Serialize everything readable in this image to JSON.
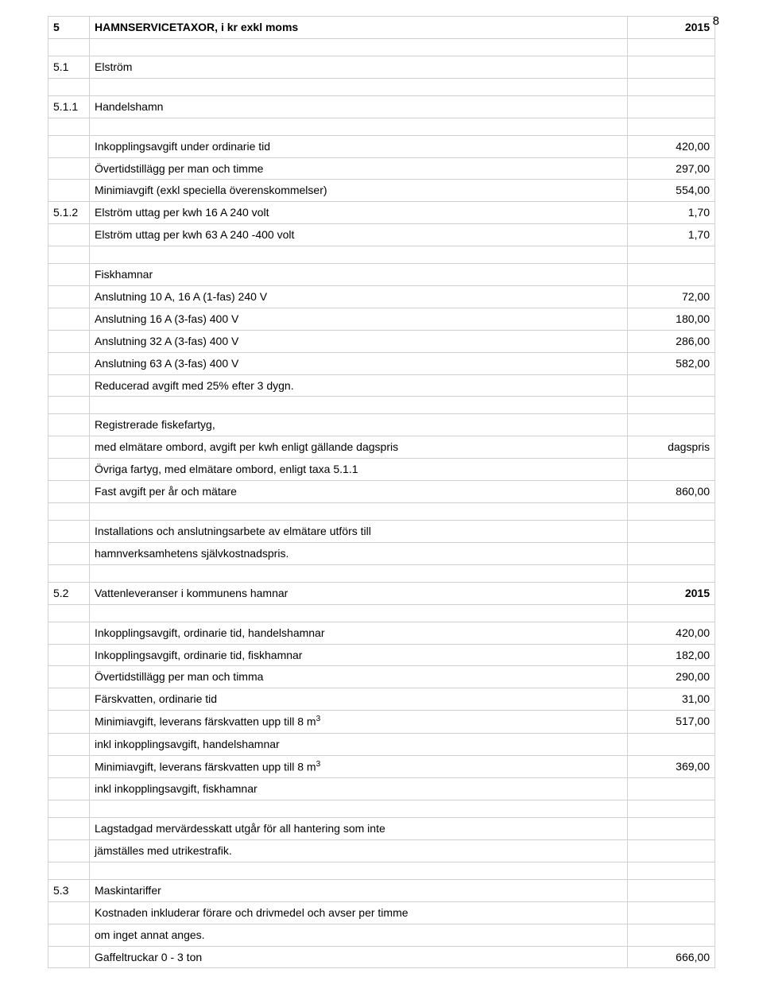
{
  "page_number": "8",
  "border_color": "#d0d0d0",
  "text_color": "#000000",
  "font_size_pt": 11,
  "rows": [
    {
      "c1": "5",
      "c2": "HAMNSERVICETAXOR, i kr exkl moms",
      "c3": "2015",
      "bold": true
    },
    {
      "blank": true
    },
    {
      "c1": "5.1",
      "c2": "Elström",
      "c3": ""
    },
    {
      "blank": true
    },
    {
      "c1": "5.1.1",
      "c2": "Handelshamn",
      "c3": ""
    },
    {
      "blank": true
    },
    {
      "c1": "",
      "c2": "Inkopplingsavgift under ordinarie tid",
      "c3": "420,00"
    },
    {
      "c1": "",
      "c2": "Övertidstillägg per man och timme",
      "c3": "297,00"
    },
    {
      "c1": "",
      "c2": "Minimiavgift (exkl speciella överenskommelser)",
      "c3": "554,00"
    },
    {
      "c1": "5.1.2",
      "c2": "Elström uttag per kwh 16 A 240 volt",
      "c3": "1,70"
    },
    {
      "c1": "",
      "c2": "Elström uttag per kwh 63 A 240 -400 volt",
      "c3": "1,70"
    },
    {
      "blank": true
    },
    {
      "c1": "",
      "c2": "Fiskhamnar",
      "c3": ""
    },
    {
      "c1": "",
      "c2": "Anslutning 10 A, 16 A (1-fas) 240 V",
      "c3": "72,00"
    },
    {
      "c1": "",
      "c2": "Anslutning 16 A (3-fas) 400 V",
      "c3": "180,00"
    },
    {
      "c1": "",
      "c2": "Anslutning 32 A (3-fas) 400 V",
      "c3": "286,00"
    },
    {
      "c1": "",
      "c2": "Anslutning 63 A (3-fas) 400 V",
      "c3": "582,00"
    },
    {
      "c1": "",
      "c2": "Reducerad avgift med 25% efter 3 dygn.",
      "c3": ""
    },
    {
      "blank": true
    },
    {
      "c1": "",
      "c2": "Registrerade fiskefartyg,",
      "c3": ""
    },
    {
      "c1": "",
      "c2": "med elmätare ombord, avgift per kwh enligt gällande dagspris",
      "c3": "dagspris"
    },
    {
      "c1": "",
      "c2": "Övriga fartyg, med elmätare ombord, enligt taxa 5.1.1",
      "c3": ""
    },
    {
      "c1": "",
      "c2": "Fast avgift per år och mätare",
      "c3": "860,00"
    },
    {
      "blank": true
    },
    {
      "c1": "",
      "c2": "Installations och anslutningsarbete av elmätare utförs till",
      "c3": ""
    },
    {
      "c1": "",
      "c2": "hamnverksamhetens självkostnadspris.",
      "c3": ""
    },
    {
      "blank": true
    },
    {
      "c1": "5.2",
      "c2": "Vattenleveranser i kommunens hamnar",
      "c3": "2015",
      "c3bold": true
    },
    {
      "blank": true
    },
    {
      "c1": "",
      "c2": "Inkopplingsavgift, ordinarie tid, handelshamnar",
      "c3": "420,00"
    },
    {
      "c1": "",
      "c2": "Inkopplingsavgift, ordinarie tid, fiskhamnar",
      "c3": "182,00"
    },
    {
      "c1": "",
      "c2": "Övertidstillägg per man och timma",
      "c3": "290,00"
    },
    {
      "c1": "",
      "c2": "Färskvatten, ordinarie tid",
      "c3": "31,00"
    },
    {
      "c1": "",
      "c2_html": "Minimiavgift, leverans färskvatten upp till 8 m<sup>3</sup>",
      "c3": "517,00"
    },
    {
      "c1": "",
      "c2": "inkl inkopplingsavgift, handelshamnar",
      "c3": ""
    },
    {
      "c1": "",
      "c2_html": "Minimiavgift, leverans färskvatten upp till 8 m<sup>3</sup>",
      "c3": "369,00"
    },
    {
      "c1": "",
      "c2": "inkl inkopplingsavgift, fiskhamnar",
      "c3": ""
    },
    {
      "blank": true
    },
    {
      "c1": "",
      "c2": "Lagstadgad mervärdesskatt utgår för all hantering som inte",
      "c3": ""
    },
    {
      "c1": "",
      "c2": "jämställes med utrikestrafik.",
      "c3": ""
    },
    {
      "blank": true
    },
    {
      "c1": "5.3",
      "c2": "Maskintariffer",
      "c3": ""
    },
    {
      "c1": "",
      "c2": "Kostnaden inkluderar förare och drivmedel och avser per timme",
      "c3": ""
    },
    {
      "c1": "",
      "c2": "om inget annat anges.",
      "c3": ""
    },
    {
      "c1": "",
      "c2": "Gaffeltruckar 0 - 3 ton",
      "c3": "666,00"
    }
  ]
}
